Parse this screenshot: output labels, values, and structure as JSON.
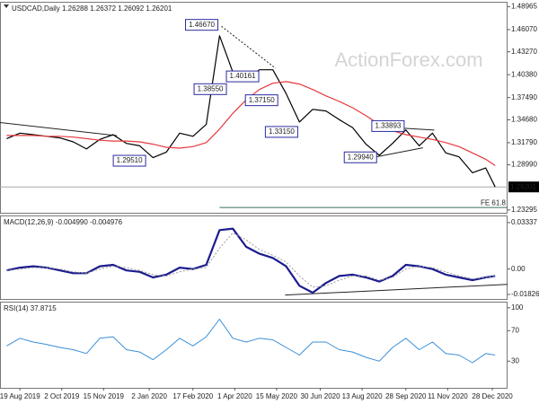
{
  "chart_data": [
    {
      "type": "line",
      "title": "USDCAD,Daily 1.26288 1.26372 1.26092 1.26201",
      "watermark": "ActionForex.com",
      "x": [
        "2019-08-05",
        "2019-08-19",
        "2019-09-02",
        "2019-09-16",
        "2019-09-30",
        "2019-10-14",
        "2019-10-28",
        "2019-11-11",
        "2019-11-25",
        "2019-12-09",
        "2019-12-23",
        "2020-01-06",
        "2020-01-20",
        "2020-02-03",
        "2020-02-17",
        "2020-03-02",
        "2020-03-16",
        "2020-03-30",
        "2020-04-13",
        "2020-04-27",
        "2020-05-11",
        "2020-05-25",
        "2020-06-08",
        "2020-06-22",
        "2020-07-06",
        "2020-07-20",
        "2020-08-03",
        "2020-08-17",
        "2020-08-31",
        "2020-09-14",
        "2020-09-28",
        "2020-10-12",
        "2020-10-26",
        "2020-11-09",
        "2020-11-23",
        "2020-12-07",
        "2020-12-21",
        "2020-12-31"
      ],
      "series": [
        {
          "color": "#000000",
          "width": 1.2,
          "values": [
            1.323,
            1.33,
            1.328,
            1.326,
            1.324,
            1.319,
            1.31,
            1.322,
            1.328,
            1.317,
            1.314,
            1.299,
            1.306,
            1.33,
            1.326,
            1.341,
            1.453,
            1.407,
            1.398,
            1.41,
            1.41,
            1.38,
            1.344,
            1.36,
            1.358,
            1.347,
            1.337,
            1.316,
            1.302,
            1.317,
            1.334,
            1.314,
            1.33,
            1.305,
            1.3,
            1.28,
            1.286,
            1.262
          ]
        },
        {
          "color": "#e8383d",
          "width": 1.2,
          "values": [
            1.327,
            1.327,
            1.327,
            1.326,
            1.326,
            1.325,
            1.323,
            1.321,
            1.32,
            1.32,
            1.319,
            1.316,
            1.312,
            1.311,
            1.313,
            1.318,
            1.335,
            1.355,
            1.372,
            1.385,
            1.393,
            1.395,
            1.392,
            1.385,
            1.377,
            1.37,
            1.362,
            1.352,
            1.341,
            1.333,
            1.328,
            1.325,
            1.322,
            1.318,
            1.313,
            1.305,
            1.297,
            1.289
          ]
        }
      ],
      "xlim": [
        "2019-07-29",
        "2021-01-13"
      ],
      "ylim": [
        1.2294,
        1.4958
      ],
      "yticks": [
        1.48965,
        {
          "value": 1.4607,
          "label": "1.46070"
        },
        {
          "value": 1.4327,
          "label": "1.43270"
        },
        {
          "value": 1.4038,
          "label": "1.40380"
        },
        {
          "value": 1.3749,
          "label": "1.37490"
        },
        {
          "value": 1.3468,
          "label": "1.34680"
        },
        {
          "value": 1.3179,
          "label": "1.31790"
        },
        {
          "value": 1.2899,
          "label": "1.28990"
        },
        1.23295
      ],
      "current": {
        "value": 1.26201,
        "label": "1.26201"
      },
      "fe_level": {
        "value": 1.236,
        "label": "FE 61.8",
        "start": "2020-03-16"
      },
      "annotations": [
        {
          "x": "2020-03-18",
          "value": 1.4667,
          "label": "1.46670"
        },
        {
          "x": "2020-03-27",
          "value": 1.3855,
          "label": "1.38550"
        },
        {
          "x": "2020-04-30",
          "value": 1.4016,
          "label": "1.40161"
        },
        {
          "x": "2020-05-20",
          "value": 1.3715,
          "label": "1.37150"
        },
        {
          "x": "2020-06-10",
          "value": 1.3315,
          "label": "1.33150"
        },
        {
          "x": "2020-01-02",
          "value": 1.2951,
          "label": "1.29510"
        },
        {
          "x": "2020-09-01",
          "value": 1.2994,
          "label": "1.29940"
        },
        {
          "x": "2020-09-30",
          "value": 1.3389,
          "label": "1.33893"
        }
      ],
      "trendlines": [
        {
          "x": [
            "2019-07-29",
            "2019-11-29"
          ],
          "values": [
            1.3433,
            1.3267
          ]
        },
        {
          "x": [
            "2020-03-18",
            "2020-05-14"
          ],
          "values": [
            1.4649,
            1.4118
          ]
        },
        {
          "x": [
            "2020-09-08",
            "2020-10-28"
          ],
          "values": [
            1.3374,
            1.3339
          ]
        },
        {
          "x": [
            "2020-08-11",
            "2020-10-16"
          ],
          "values": [
            1.2961,
            1.3115
          ]
        }
      ]
    },
    {
      "type": "line",
      "title": "MACD(12,26,9) -0.004990 -0.004976",
      "x": [
        "2019-08-05",
        "2019-08-19",
        "2019-09-02",
        "2019-09-16",
        "2019-09-30",
        "2019-10-14",
        "2019-10-28",
        "2019-11-11",
        "2019-11-25",
        "2019-12-09",
        "2019-12-23",
        "2020-01-06",
        "2020-01-20",
        "2020-02-03",
        "2020-02-17",
        "2020-03-02",
        "2020-03-16",
        "2020-03-30",
        "2020-04-13",
        "2020-04-27",
        "2020-05-11",
        "2020-05-25",
        "2020-06-08",
        "2020-06-22",
        "2020-07-06",
        "2020-07-20",
        "2020-08-03",
        "2020-08-17",
        "2020-08-31",
        "2020-09-14",
        "2020-09-28",
        "2020-10-12",
        "2020-10-26",
        "2020-11-09",
        "2020-11-23",
        "2020-12-07",
        "2020-12-21",
        "2020-12-31"
      ],
      "series": [
        {
          "color": "#1c1c8f",
          "width": 2.2,
          "values": [
            -0.001,
            0.001,
            0.002,
            0.001,
            -0.001,
            -0.003,
            -0.003,
            0.002,
            0.003,
            -0.001,
            -0.002,
            -0.006,
            -0.004,
            0.001,
            0.0,
            0.003,
            0.028,
            0.029,
            0.016,
            0.011,
            0.008,
            0.002,
            -0.012,
            -0.017,
            -0.01,
            -0.005,
            -0.004,
            -0.006,
            -0.009,
            -0.005,
            0.003,
            0.002,
            0.0,
            -0.004,
            -0.006,
            -0.008,
            -0.006,
            -0.005
          ]
        },
        {
          "color": "#9a9a9a",
          "width": 1,
          "dotted": true,
          "values": [
            -0.001,
            0.0,
            0.001,
            0.001,
            0.0,
            -0.002,
            -0.003,
            0.0,
            0.002,
            0.001,
            -0.001,
            -0.004,
            -0.005,
            -0.002,
            0.0,
            0.001,
            0.015,
            0.026,
            0.021,
            0.014,
            0.01,
            0.005,
            -0.005,
            -0.013,
            -0.012,
            -0.008,
            -0.005,
            -0.005,
            -0.008,
            -0.006,
            0.0,
            0.002,
            0.001,
            -0.002,
            -0.005,
            -0.007,
            -0.006,
            -0.005
          ]
        }
      ],
      "xlim": [
        "2019-07-29",
        "2021-01-13"
      ],
      "ylim": [
        -0.0215,
        0.0385
      ],
      "yticks": [
        0.03337,
        {
          "value": 0,
          "label": "0.00"
        },
        -0.018262
      ],
      "trendlines": [
        {
          "x": [
            "2020-05-24",
            "2021-01-13"
          ],
          "values": [
            -0.0187,
            -0.011
          ]
        }
      ]
    },
    {
      "type": "line",
      "title": "RSI(14) 37.8715",
      "x": [
        "2019-08-05",
        "2019-08-19",
        "2019-09-02",
        "2019-09-16",
        "2019-09-30",
        "2019-10-14",
        "2019-10-28",
        "2019-11-11",
        "2019-11-25",
        "2019-12-09",
        "2019-12-23",
        "2020-01-06",
        "2020-01-20",
        "2020-02-03",
        "2020-02-17",
        "2020-03-02",
        "2020-03-16",
        "2020-03-30",
        "2020-04-13",
        "2020-04-27",
        "2020-05-11",
        "2020-05-25",
        "2020-06-08",
        "2020-06-22",
        "2020-07-06",
        "2020-07-20",
        "2020-08-03",
        "2020-08-17",
        "2020-08-31",
        "2020-09-14",
        "2020-09-28",
        "2020-10-12",
        "2020-10-26",
        "2020-11-09",
        "2020-11-23",
        "2020-12-07",
        "2020-12-21",
        "2020-12-31"
      ],
      "series": [
        {
          "color": "#3a8fd8",
          "width": 1,
          "values": [
            50,
            60,
            55,
            52,
            48,
            45,
            40,
            60,
            62,
            45,
            42,
            32,
            45,
            60,
            50,
            62,
            85,
            60,
            55,
            60,
            58,
            48,
            38,
            55,
            55,
            45,
            42,
            35,
            30,
            48,
            60,
            45,
            55,
            40,
            38,
            28,
            40,
            38
          ]
        }
      ],
      "xlim": [
        "2019-07-29",
        "2021-01-13"
      ],
      "ylim": [
        -5,
        108
      ],
      "yticks": [
        100,
        70,
        30
      ],
      "xticks": [
        {
          "value": "2019-08-19",
          "label": "19 Aug 2019"
        },
        {
          "value": "2019-10-02",
          "label": "2 Oct 2019"
        },
        {
          "value": "2019-11-15",
          "label": "15 Nov 2019"
        },
        {
          "value": "2020-01-02",
          "label": "2 Jan 2020"
        },
        {
          "value": "2020-02-17",
          "label": "17 Feb 2020"
        },
        {
          "value": "2020-04-01",
          "label": "1 Apr 2020"
        },
        {
          "value": "2020-05-15",
          "label": "15 May 2020"
        },
        {
          "value": "2020-06-30",
          "label": "30 Jun 2020"
        },
        {
          "value": "2020-08-13",
          "label": "13 Aug 2020"
        },
        {
          "value": "2020-09-28",
          "label": "28 Sep 2020"
        },
        {
          "value": "2020-11-11",
          "label": "11 Nov 2020"
        },
        {
          "value": "2020-12-28",
          "label": "28 Dec 2020"
        }
      ]
    }
  ]
}
